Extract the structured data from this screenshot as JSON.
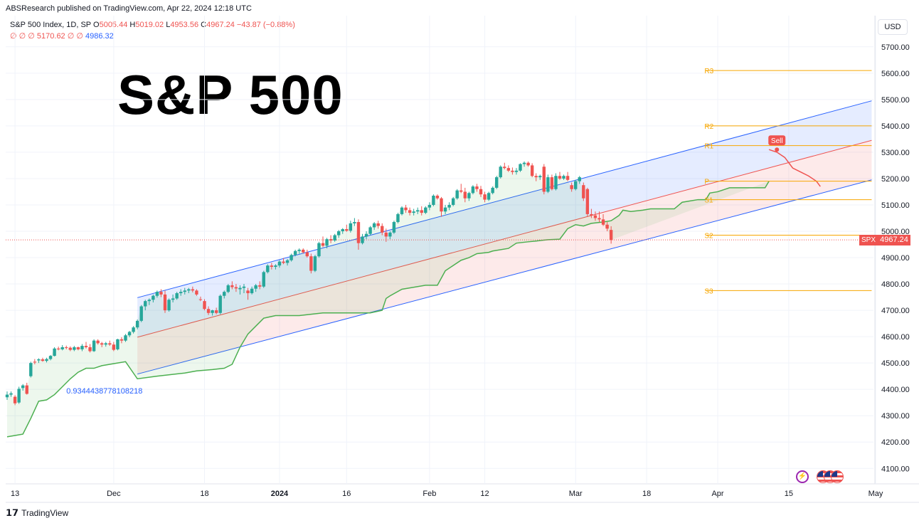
{
  "header": {
    "published_by": "ABSResearch published on TradingView.com, Apr 22, 2024 12:18 UTC"
  },
  "legend": {
    "symbol": "S&P 500 Index, 1D, SP",
    "open_label": "O",
    "open": "5005.44",
    "high_label": "H",
    "high": "5019.02",
    "low_label": "L",
    "low": "4953.56",
    "close_label": "C",
    "close": "4967.24",
    "change": "−43.87 (−0.88%)",
    "indicators_row": "∅ ∅ ∅ 5170.62 ∅ ∅",
    "indicator_value": "4986.32"
  },
  "title": "S&P 500",
  "currency_button": "USD",
  "price_tag": {
    "symbol": "SPX",
    "value": "4967.24",
    "color": "#ef5350"
  },
  "footer": {
    "brand": "TradingView"
  },
  "colors": {
    "up": "#26a69a",
    "down": "#ef5350",
    "channel_upper": "#2962ff",
    "channel_mid": "#ef5350",
    "supertrend": "#4caf50",
    "pivot": "#f7a600"
  },
  "chart_data": {
    "type": "candlestick",
    "y_axis": {
      "range": [
        4050,
        5800
      ],
      "ticks": [
        "4100.00",
        "4200.00",
        "4300.00",
        "4400.00",
        "4500.00",
        "4600.00",
        "4700.00",
        "4800.00",
        "4900.00",
        "5000.00",
        "5100.00",
        "5200.00",
        "5300.00",
        "5400.00",
        "5500.00",
        "5600.00",
        "5700.00"
      ],
      "tick_values": [
        4100,
        4200,
        4300,
        4400,
        4500,
        4600,
        4700,
        4800,
        4900,
        5000,
        5100,
        5200,
        5300,
        5400,
        5500,
        5600,
        5700
      ]
    },
    "x_axis": {
      "labels": [
        "13",
        "Dec",
        "18",
        "2024",
        "16",
        "Feb",
        "12",
        "Mar",
        "18",
        "Apr",
        "15",
        "May"
      ],
      "label_bars": [
        2,
        27,
        50,
        69,
        86,
        107,
        121,
        144,
        162,
        180,
        198,
        220
      ],
      "bold": [
        "2024"
      ]
    },
    "candles": [
      [
        4370,
        4392,
        4360,
        4380
      ],
      [
        4380,
        4392,
        4372,
        4385
      ],
      [
        4372,
        4378,
        4340,
        4347
      ],
      [
        4350,
        4410,
        4345,
        4402
      ],
      [
        4405,
        4420,
        4395,
        4415
      ],
      [
        4415,
        4425,
        4380,
        4383
      ],
      [
        4450,
        4505,
        4445,
        4500
      ],
      [
        4505,
        4515,
        4495,
        4502
      ],
      [
        4510,
        4518,
        4500,
        4514
      ],
      [
        4514,
        4520,
        4505,
        4508
      ],
      [
        4508,
        4520,
        4502,
        4515
      ],
      [
        4515,
        4530,
        4510,
        4527
      ],
      [
        4527,
        4560,
        4525,
        4555
      ],
      [
        4555,
        4562,
        4548,
        4552
      ],
      [
        4552,
        4568,
        4548,
        4560
      ],
      [
        4560,
        4566,
        4552,
        4558
      ],
      [
        4558,
        4563,
        4545,
        4550
      ],
      [
        4550,
        4565,
        4545,
        4560
      ],
      [
        4560,
        4562,
        4548,
        4552
      ],
      [
        4552,
        4572,
        4545,
        4565
      ],
      [
        4565,
        4580,
        4555,
        4560
      ],
      [
        4560,
        4572,
        4540,
        4545
      ],
      [
        4545,
        4590,
        4542,
        4585
      ],
      [
        4585,
        4590,
        4570,
        4575
      ],
      [
        4575,
        4580,
        4560,
        4570
      ],
      [
        4570,
        4580,
        4562,
        4575
      ],
      [
        4575,
        4585,
        4565,
        4570
      ],
      [
        4570,
        4580,
        4545,
        4550
      ],
      [
        4552,
        4592,
        4548,
        4590
      ],
      [
        4590,
        4598,
        4575,
        4585
      ],
      [
        4585,
        4610,
        4580,
        4605
      ],
      [
        4605,
        4622,
        4598,
        4618
      ],
      [
        4618,
        4640,
        4612,
        4635
      ],
      [
        4635,
        4665,
        4628,
        4660
      ],
      [
        4660,
        4720,
        4655,
        4715
      ],
      [
        4715,
        4740,
        4700,
        4735
      ],
      [
        4735,
        4745,
        4720,
        4740
      ],
      [
        4740,
        4760,
        4730,
        4755
      ],
      [
        4755,
        4775,
        4748,
        4770
      ],
      [
        4770,
        4780,
        4750,
        4760
      ],
      [
        4760,
        4775,
        4690,
        4700
      ],
      [
        4700,
        4745,
        4695,
        4740
      ],
      [
        4740,
        4760,
        4730,
        4745
      ],
      [
        4745,
        4770,
        4740,
        4765
      ],
      [
        4765,
        4780,
        4755,
        4770
      ],
      [
        4770,
        4785,
        4760,
        4775
      ],
      [
        4775,
        4785,
        4765,
        4780
      ],
      [
        4780,
        4790,
        4768,
        4775
      ],
      [
        4775,
        4780,
        4755,
        4760
      ],
      [
        4742,
        4752,
        4735,
        4740
      ],
      [
        4735,
        4742,
        4700,
        4705
      ],
      [
        4705,
        4715,
        4682,
        4690
      ],
      [
        4690,
        4702,
        4680,
        4700
      ],
      [
        4700,
        4710,
        4685,
        4690
      ],
      [
        4690,
        4760,
        4685,
        4755
      ],
      [
        4755,
        4775,
        4745,
        4770
      ],
      [
        4770,
        4800,
        4765,
        4795
      ],
      [
        4795,
        4810,
        4780,
        4788
      ],
      [
        4788,
        4800,
        4770,
        4783
      ],
      [
        4780,
        4795,
        4760,
        4785
      ],
      [
        4785,
        4800,
        4765,
        4790
      ],
      [
        4775,
        4785,
        4740,
        4765
      ],
      [
        4765,
        4790,
        4760,
        4782
      ],
      [
        4782,
        4800,
        4770,
        4795
      ],
      [
        4795,
        4810,
        4780,
        4790
      ],
      [
        4790,
        4850,
        4785,
        4845
      ],
      [
        4845,
        4875,
        4840,
        4870
      ],
      [
        4870,
        4880,
        4855,
        4865
      ],
      [
        4865,
        4875,
        4855,
        4870
      ],
      [
        4870,
        4890,
        4862,
        4885
      ],
      [
        4885,
        4898,
        4875,
        4880
      ],
      [
        4880,
        4895,
        4870,
        4890
      ],
      [
        4890,
        4915,
        4885,
        4910
      ],
      [
        4910,
        4930,
        4905,
        4925
      ],
      [
        4925,
        4935,
        4915,
        4930
      ],
      [
        4930,
        4935,
        4915,
        4920
      ],
      [
        4920,
        4930,
        4900,
        4905
      ],
      [
        4905,
        4915,
        4840,
        4850
      ],
      [
        4850,
        4910,
        4845,
        4905
      ],
      [
        4905,
        4960,
        4900,
        4955
      ],
      [
        4955,
        4980,
        4940,
        4945
      ],
      [
        4945,
        4975,
        4935,
        4970
      ],
      [
        4970,
        4985,
        4955,
        4965
      ],
      [
        4965,
        4990,
        4960,
        4985
      ],
      [
        4985,
        5005,
        4975,
        5000
      ],
      [
        5000,
        5012,
        4990,
        5008
      ],
      [
        5008,
        5025,
        4998,
        5002
      ],
      [
        5002,
        5040,
        4995,
        5030
      ],
      [
        5030,
        5050,
        5020,
        5035
      ],
      [
        5035,
        5045,
        4930,
        4955
      ],
      [
        4955,
        4990,
        4950,
        4980
      ],
      [
        4980,
        5000,
        4970,
        4990
      ],
      [
        4990,
        5020,
        4985,
        5015
      ],
      [
        5015,
        5035,
        5005,
        5030
      ],
      [
        5030,
        5040,
        5010,
        5020
      ],
      [
        5020,
        5030,
        4985,
        4995
      ],
      [
        4995,
        5010,
        4960,
        4980
      ],
      [
        4980,
        5000,
        4970,
        4995
      ],
      [
        4995,
        5040,
        4990,
        5035
      ],
      [
        5035,
        5070,
        5030,
        5065
      ],
      [
        5065,
        5095,
        5060,
        5090
      ],
      [
        5090,
        5100,
        5070,
        5080
      ],
      [
        5080,
        5090,
        5060,
        5070
      ],
      [
        5070,
        5085,
        5060,
        5075
      ],
      [
        5075,
        5090,
        5065,
        5080
      ],
      [
        5080,
        5095,
        5060,
        5070
      ],
      [
        5070,
        5095,
        5065,
        5090
      ],
      [
        5090,
        5110,
        5080,
        5100
      ],
      [
        5100,
        5140,
        5095,
        5135
      ],
      [
        5135,
        5140,
        5120,
        5125
      ],
      [
        5125,
        5130,
        5055,
        5075
      ],
      [
        5075,
        5100,
        5065,
        5090
      ],
      [
        5090,
        5110,
        5080,
        5100
      ],
      [
        5100,
        5130,
        5095,
        5125
      ],
      [
        5125,
        5160,
        5120,
        5155
      ],
      [
        5155,
        5180,
        5145,
        5150
      ],
      [
        5150,
        5165,
        5110,
        5125
      ],
      [
        5125,
        5150,
        5115,
        5145
      ],
      [
        5145,
        5175,
        5140,
        5170
      ],
      [
        5170,
        5180,
        5150,
        5160
      ],
      [
        5160,
        5172,
        5130,
        5140
      ],
      [
        5140,
        5150,
        5110,
        5120
      ],
      [
        5120,
        5150,
        5115,
        5145
      ],
      [
        5145,
        5170,
        5140,
        5165
      ],
      [
        5165,
        5210,
        5160,
        5205
      ],
      [
        5205,
        5250,
        5200,
        5245
      ],
      [
        5245,
        5260,
        5235,
        5240
      ],
      [
        5240,
        5250,
        5225,
        5230
      ],
      [
        5230,
        5242,
        5215,
        5225
      ],
      [
        5225,
        5240,
        5215,
        5230
      ],
      [
        5230,
        5258,
        5225,
        5255
      ],
      [
        5255,
        5265,
        5245,
        5260
      ],
      [
        5260,
        5265,
        5245,
        5250
      ],
      [
        5250,
        5258,
        5205,
        5210
      ],
      [
        5210,
        5220,
        5190,
        5205
      ],
      [
        5205,
        5215,
        5195,
        5210
      ],
      [
        5245,
        5255,
        5140,
        5150
      ],
      [
        5150,
        5215,
        5145,
        5205
      ],
      [
        5205,
        5215,
        5155,
        5160
      ],
      [
        5160,
        5220,
        5155,
        5210
      ],
      [
        5210,
        5225,
        5195,
        5200
      ],
      [
        5200,
        5215,
        5195,
        5210
      ],
      [
        5210,
        5225,
        5190,
        5195
      ],
      [
        5175,
        5185,
        5150,
        5160
      ],
      [
        5160,
        5195,
        5155,
        5190
      ],
      [
        5190,
        5210,
        5180,
        5205
      ],
      [
        5175,
        5185,
        5115,
        5125
      ],
      [
        5160,
        5165,
        5055,
        5065
      ],
      [
        5065,
        5085,
        5050,
        5060
      ],
      [
        5060,
        5075,
        5040,
        5050
      ],
      [
        5050,
        5075,
        5035,
        5045
      ],
      [
        5045,
        5065,
        5020,
        5025
      ],
      [
        5025,
        5035,
        5000,
        5010
      ],
      [
        5005,
        5019,
        4953,
        4967
      ]
    ],
    "bar_index_of_first": 0,
    "regression_channel": {
      "start_bar": 33,
      "end_bar": 219,
      "upper": [
        4748,
        5495
      ],
      "mid": [
        4598,
        5345
      ],
      "lower": [
        4458,
        5195
      ],
      "pearson_label": "0.9344438778108218"
    },
    "supertrend": [
      [
        0,
        4220
      ],
      [
        2,
        4225
      ],
      [
        4,
        4230
      ],
      [
        6,
        4290
      ],
      [
        8,
        4355
      ],
      [
        10,
        4360
      ],
      [
        12,
        4380
      ],
      [
        14,
        4410
      ],
      [
        16,
        4440
      ],
      [
        18,
        4465
      ],
      [
        20,
        4480
      ],
      [
        22,
        4480
      ],
      [
        24,
        4490
      ],
      [
        28,
        4500
      ],
      [
        30,
        4505
      ],
      [
        33,
        4440
      ],
      [
        38,
        4450
      ],
      [
        45,
        4462
      ],
      [
        48,
        4470
      ],
      [
        52,
        4475
      ],
      [
        55,
        4480
      ],
      [
        57,
        4495
      ],
      [
        59,
        4560
      ],
      [
        61,
        4610
      ],
      [
        63,
        4640
      ],
      [
        65,
        4670
      ],
      [
        68,
        4680
      ],
      [
        72,
        4680
      ],
      [
        74,
        4680
      ],
      [
        80,
        4690
      ],
      [
        83,
        4690
      ],
      [
        90,
        4690
      ],
      [
        92,
        4690
      ],
      [
        95,
        4700
      ],
      [
        96,
        4745
      ],
      [
        97,
        4755
      ],
      [
        100,
        4780
      ],
      [
        102,
        4785
      ],
      [
        106,
        4795
      ],
      [
        109,
        4795
      ],
      [
        111,
        4850
      ],
      [
        113,
        4870
      ],
      [
        115,
        4890
      ],
      [
        117,
        4900
      ],
      [
        119,
        4915
      ],
      [
        122,
        4920
      ],
      [
        123,
        4925
      ],
      [
        127,
        4935
      ],
      [
        129,
        4955
      ],
      [
        132,
        4960
      ],
      [
        134,
        4963
      ],
      [
        137,
        4968
      ],
      [
        140,
        4970
      ],
      [
        142,
        5010
      ],
      [
        144,
        5025
      ],
      [
        146,
        5020
      ],
      [
        148,
        5030
      ],
      [
        151,
        5035
      ],
      [
        153,
        5040
      ],
      [
        155,
        5060
      ],
      [
        156,
        5080
      ],
      [
        158,
        5075
      ],
      [
        161,
        5080
      ],
      [
        163,
        5085
      ],
      [
        166,
        5085
      ],
      [
        169,
        5085
      ],
      [
        171,
        5110
      ],
      [
        173,
        5115
      ],
      [
        175,
        5120
      ],
      [
        177,
        5120
      ],
      [
        178,
        5145
      ],
      [
        180,
        5150
      ],
      [
        183,
        5165
      ],
      [
        187,
        5165
      ],
      [
        190,
        5165
      ],
      [
        192,
        5165
      ],
      [
        193,
        5190
      ]
    ],
    "supertrend_down": [
      [
        193,
        5310
      ],
      [
        195,
        5300
      ],
      [
        197,
        5280
      ],
      [
        199,
        5240
      ],
      [
        201,
        5225
      ],
      [
        203,
        5210
      ],
      [
        205,
        5190
      ],
      [
        206,
        5170
      ]
    ],
    "pivots": {
      "start_bar": 177,
      "end_bar": 219,
      "levels": [
        {
          "name": "R3",
          "value": 5610
        },
        {
          "name": "R2",
          "value": 5400
        },
        {
          "name": "R1",
          "value": 5325
        },
        {
          "name": "P",
          "value": 5190
        },
        {
          "name": "S1",
          "value": 5120
        },
        {
          "name": "S2",
          "value": 4985
        },
        {
          "name": "S3",
          "value": 4775
        }
      ]
    },
    "signal": {
      "label": "Sell",
      "bar": 195,
      "value": 5310
    },
    "last_price": 4967.24
  }
}
